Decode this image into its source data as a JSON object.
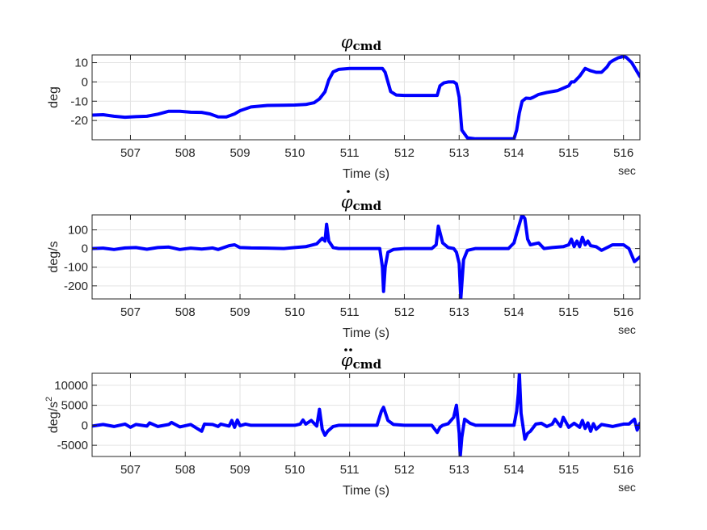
{
  "chart_data": [
    {
      "type": "line",
      "title": "φ",
      "title_sub": "cmd",
      "title_dots": 0,
      "xlabel": "Time (s)",
      "x_unit": "sec",
      "ylabel": "deg",
      "xlim": [
        506.3,
        516.3
      ],
      "ylim": [
        -30,
        14
      ],
      "xticks": [
        507,
        508,
        509,
        510,
        511,
        512,
        513,
        514,
        515,
        516
      ],
      "yticks": [
        -20,
        -10,
        0,
        10
      ],
      "color": "#0000ff",
      "series": [
        {
          "x": [
            506.3,
            506.5,
            506.7,
            506.9,
            507.1,
            507.3,
            507.5,
            507.7,
            507.9,
            508.1,
            508.3,
            508.45,
            508.6,
            508.75,
            508.9,
            509.0,
            509.2,
            509.5,
            509.8,
            510.0,
            510.2,
            510.35,
            510.45,
            510.55,
            510.62,
            510.7,
            510.8,
            511.0,
            511.3,
            511.6,
            511.65,
            511.75,
            511.85,
            512.0,
            512.3,
            512.6,
            512.65,
            512.72,
            512.8,
            512.9,
            512.95,
            513.0,
            513.05,
            513.15,
            513.3,
            513.6,
            513.9,
            514.0,
            514.05,
            514.1,
            514.15,
            514.22,
            514.3,
            514.35,
            514.45,
            514.6,
            514.8,
            515.0,
            515.05,
            515.1,
            515.2,
            515.3,
            515.4,
            515.5,
            515.6,
            515.7,
            515.75,
            515.8,
            515.9,
            516.0,
            516.05,
            516.15,
            516.3
          ],
          "y": [
            -17.2,
            -17.0,
            -17.8,
            -18.3,
            -18.0,
            -17.8,
            -16.7,
            -15.2,
            -15.2,
            -15.7,
            -15.8,
            -16.6,
            -18.1,
            -18.2,
            -16.6,
            -14.9,
            -13.0,
            -12.2,
            -12.1,
            -12.0,
            -11.7,
            -10.8,
            -8.8,
            -5.1,
            1.0,
            5.2,
            6.5,
            7.0,
            7.0,
            7.0,
            5.0,
            -5.0,
            -6.8,
            -7.0,
            -7.0,
            -7.0,
            -2.0,
            -0.5,
            0.0,
            0.0,
            -1.0,
            -8.0,
            -25.0,
            -29.0,
            -29.5,
            -29.5,
            -29.5,
            -29.5,
            -25.0,
            -16.0,
            -10.0,
            -8.4,
            -8.6,
            -8.0,
            -6.5,
            -5.5,
            -4.5,
            -2.0,
            0.0,
            0.0,
            3.0,
            7.0,
            5.8,
            5.0,
            5.0,
            7.8,
            10.0,
            11.0,
            12.5,
            13.2,
            12.8,
            10.0,
            2.8
          ]
        }
      ]
    },
    {
      "type": "line",
      "title": "φ",
      "title_sub": "cmd",
      "title_dots": 1,
      "xlabel": "Time (s)",
      "x_unit": "sec",
      "ylabel": "deg/s",
      "xlim": [
        506.3,
        516.3
      ],
      "ylim": [
        -270,
        180
      ],
      "xticks": [
        507,
        508,
        509,
        510,
        511,
        512,
        513,
        514,
        515,
        516
      ],
      "yticks": [
        -200,
        -100,
        0,
        100
      ],
      "color": "#0000ff",
      "series": [
        {
          "x": [
            506.3,
            506.5,
            506.7,
            506.9,
            507.1,
            507.3,
            507.5,
            507.7,
            507.9,
            508.1,
            508.3,
            508.5,
            508.6,
            508.8,
            508.9,
            509.0,
            509.2,
            509.5,
            509.8,
            510.0,
            510.2,
            510.4,
            510.5,
            510.55,
            510.58,
            510.62,
            510.7,
            510.8,
            511.0,
            511.3,
            511.55,
            511.6,
            511.62,
            511.65,
            511.7,
            511.8,
            512.0,
            512.5,
            512.58,
            512.62,
            512.7,
            512.8,
            512.9,
            512.95,
            513.0,
            513.03,
            513.08,
            513.15,
            513.3,
            513.6,
            513.9,
            514.0,
            514.05,
            514.15,
            514.2,
            514.25,
            514.3,
            514.45,
            514.55,
            514.7,
            514.9,
            515.0,
            515.05,
            515.1,
            515.15,
            515.2,
            515.25,
            515.3,
            515.35,
            515.4,
            515.5,
            515.6,
            515.8,
            516.0,
            516.1,
            516.2,
            516.3
          ],
          "y": [
            0,
            2,
            -5,
            3,
            5,
            -4,
            5,
            8,
            -5,
            2,
            -3,
            3,
            -5,
            15,
            20,
            5,
            3,
            2,
            0,
            5,
            10,
            25,
            55,
            40,
            130,
            40,
            5,
            0,
            0,
            0,
            0,
            -100,
            -230,
            -100,
            -20,
            -5,
            0,
            0,
            20,
            120,
            30,
            5,
            0,
            -20,
            -80,
            -270,
            -60,
            -10,
            0,
            0,
            0,
            30,
            80,
            180,
            160,
            50,
            20,
            30,
            0,
            5,
            10,
            20,
            50,
            10,
            40,
            10,
            60,
            20,
            40,
            15,
            10,
            -10,
            20,
            20,
            0,
            -70,
            -45
          ]
        }
      ]
    },
    {
      "type": "line",
      "title": "φ",
      "title_sub": "cmd",
      "title_dots": 2,
      "xlabel": "Time (s)",
      "x_unit": "sec",
      "ylabel": "deg/s",
      "ylabel_sup": "2",
      "xlim": [
        506.3,
        516.3
      ],
      "ylim": [
        -7800,
        13000
      ],
      "xticks": [
        507,
        508,
        509,
        510,
        511,
        512,
        513,
        514,
        515,
        516
      ],
      "yticks": [
        -5000,
        0,
        5000,
        10000
      ],
      "color": "#0000ff",
      "series": [
        {
          "x": [
            506.3,
            506.5,
            506.7,
            506.9,
            507.0,
            507.1,
            507.3,
            507.35,
            507.5,
            507.7,
            507.75,
            507.9,
            508.1,
            508.3,
            508.35,
            508.5,
            508.6,
            508.65,
            508.8,
            508.85,
            508.9,
            508.95,
            509.0,
            509.1,
            509.2,
            509.5,
            509.8,
            510.0,
            510.1,
            510.15,
            510.2,
            510.3,
            510.4,
            510.45,
            510.5,
            510.55,
            510.6,
            510.7,
            510.8,
            511.0,
            511.5,
            511.58,
            511.62,
            511.7,
            511.8,
            512.0,
            512.5,
            512.6,
            512.65,
            512.7,
            512.8,
            512.9,
            512.95,
            513.0,
            513.02,
            513.05,
            513.1,
            513.2,
            513.3,
            513.6,
            513.9,
            514.0,
            514.05,
            514.08,
            514.1,
            514.13,
            514.2,
            514.25,
            514.3,
            514.4,
            514.5,
            514.6,
            514.7,
            514.75,
            514.85,
            514.9,
            515.0,
            515.1,
            515.2,
            515.25,
            515.3,
            515.35,
            515.4,
            515.45,
            515.5,
            515.6,
            515.8,
            516.0,
            516.1,
            516.2,
            516.25,
            516.3
          ],
          "y": [
            -200,
            200,
            -300,
            300,
            -500,
            200,
            -200,
            600,
            -300,
            200,
            700,
            -400,
            200,
            -1500,
            300,
            200,
            -300,
            300,
            -200,
            1200,
            -500,
            1300,
            -100,
            300,
            0,
            0,
            0,
            0,
            300,
            1300,
            300,
            1200,
            -200,
            4000,
            -1000,
            -2500,
            -1500,
            -300,
            0,
            0,
            0,
            3500,
            4500,
            1200,
            200,
            0,
            0,
            -1800,
            -500,
            0,
            400,
            2000,
            5000,
            -2000,
            -7800,
            -3000,
            1500,
            500,
            0,
            0,
            0,
            0,
            3500,
            8000,
            13000,
            3000,
            -3500,
            -2000,
            -1500,
            300,
            500,
            -300,
            300,
            1500,
            -300,
            2000,
            -500,
            500,
            -500,
            1200,
            -800,
            600,
            -1500,
            400,
            -1000,
            200,
            -300,
            300,
            300,
            1500,
            -1200,
            500
          ]
        }
      ]
    }
  ]
}
